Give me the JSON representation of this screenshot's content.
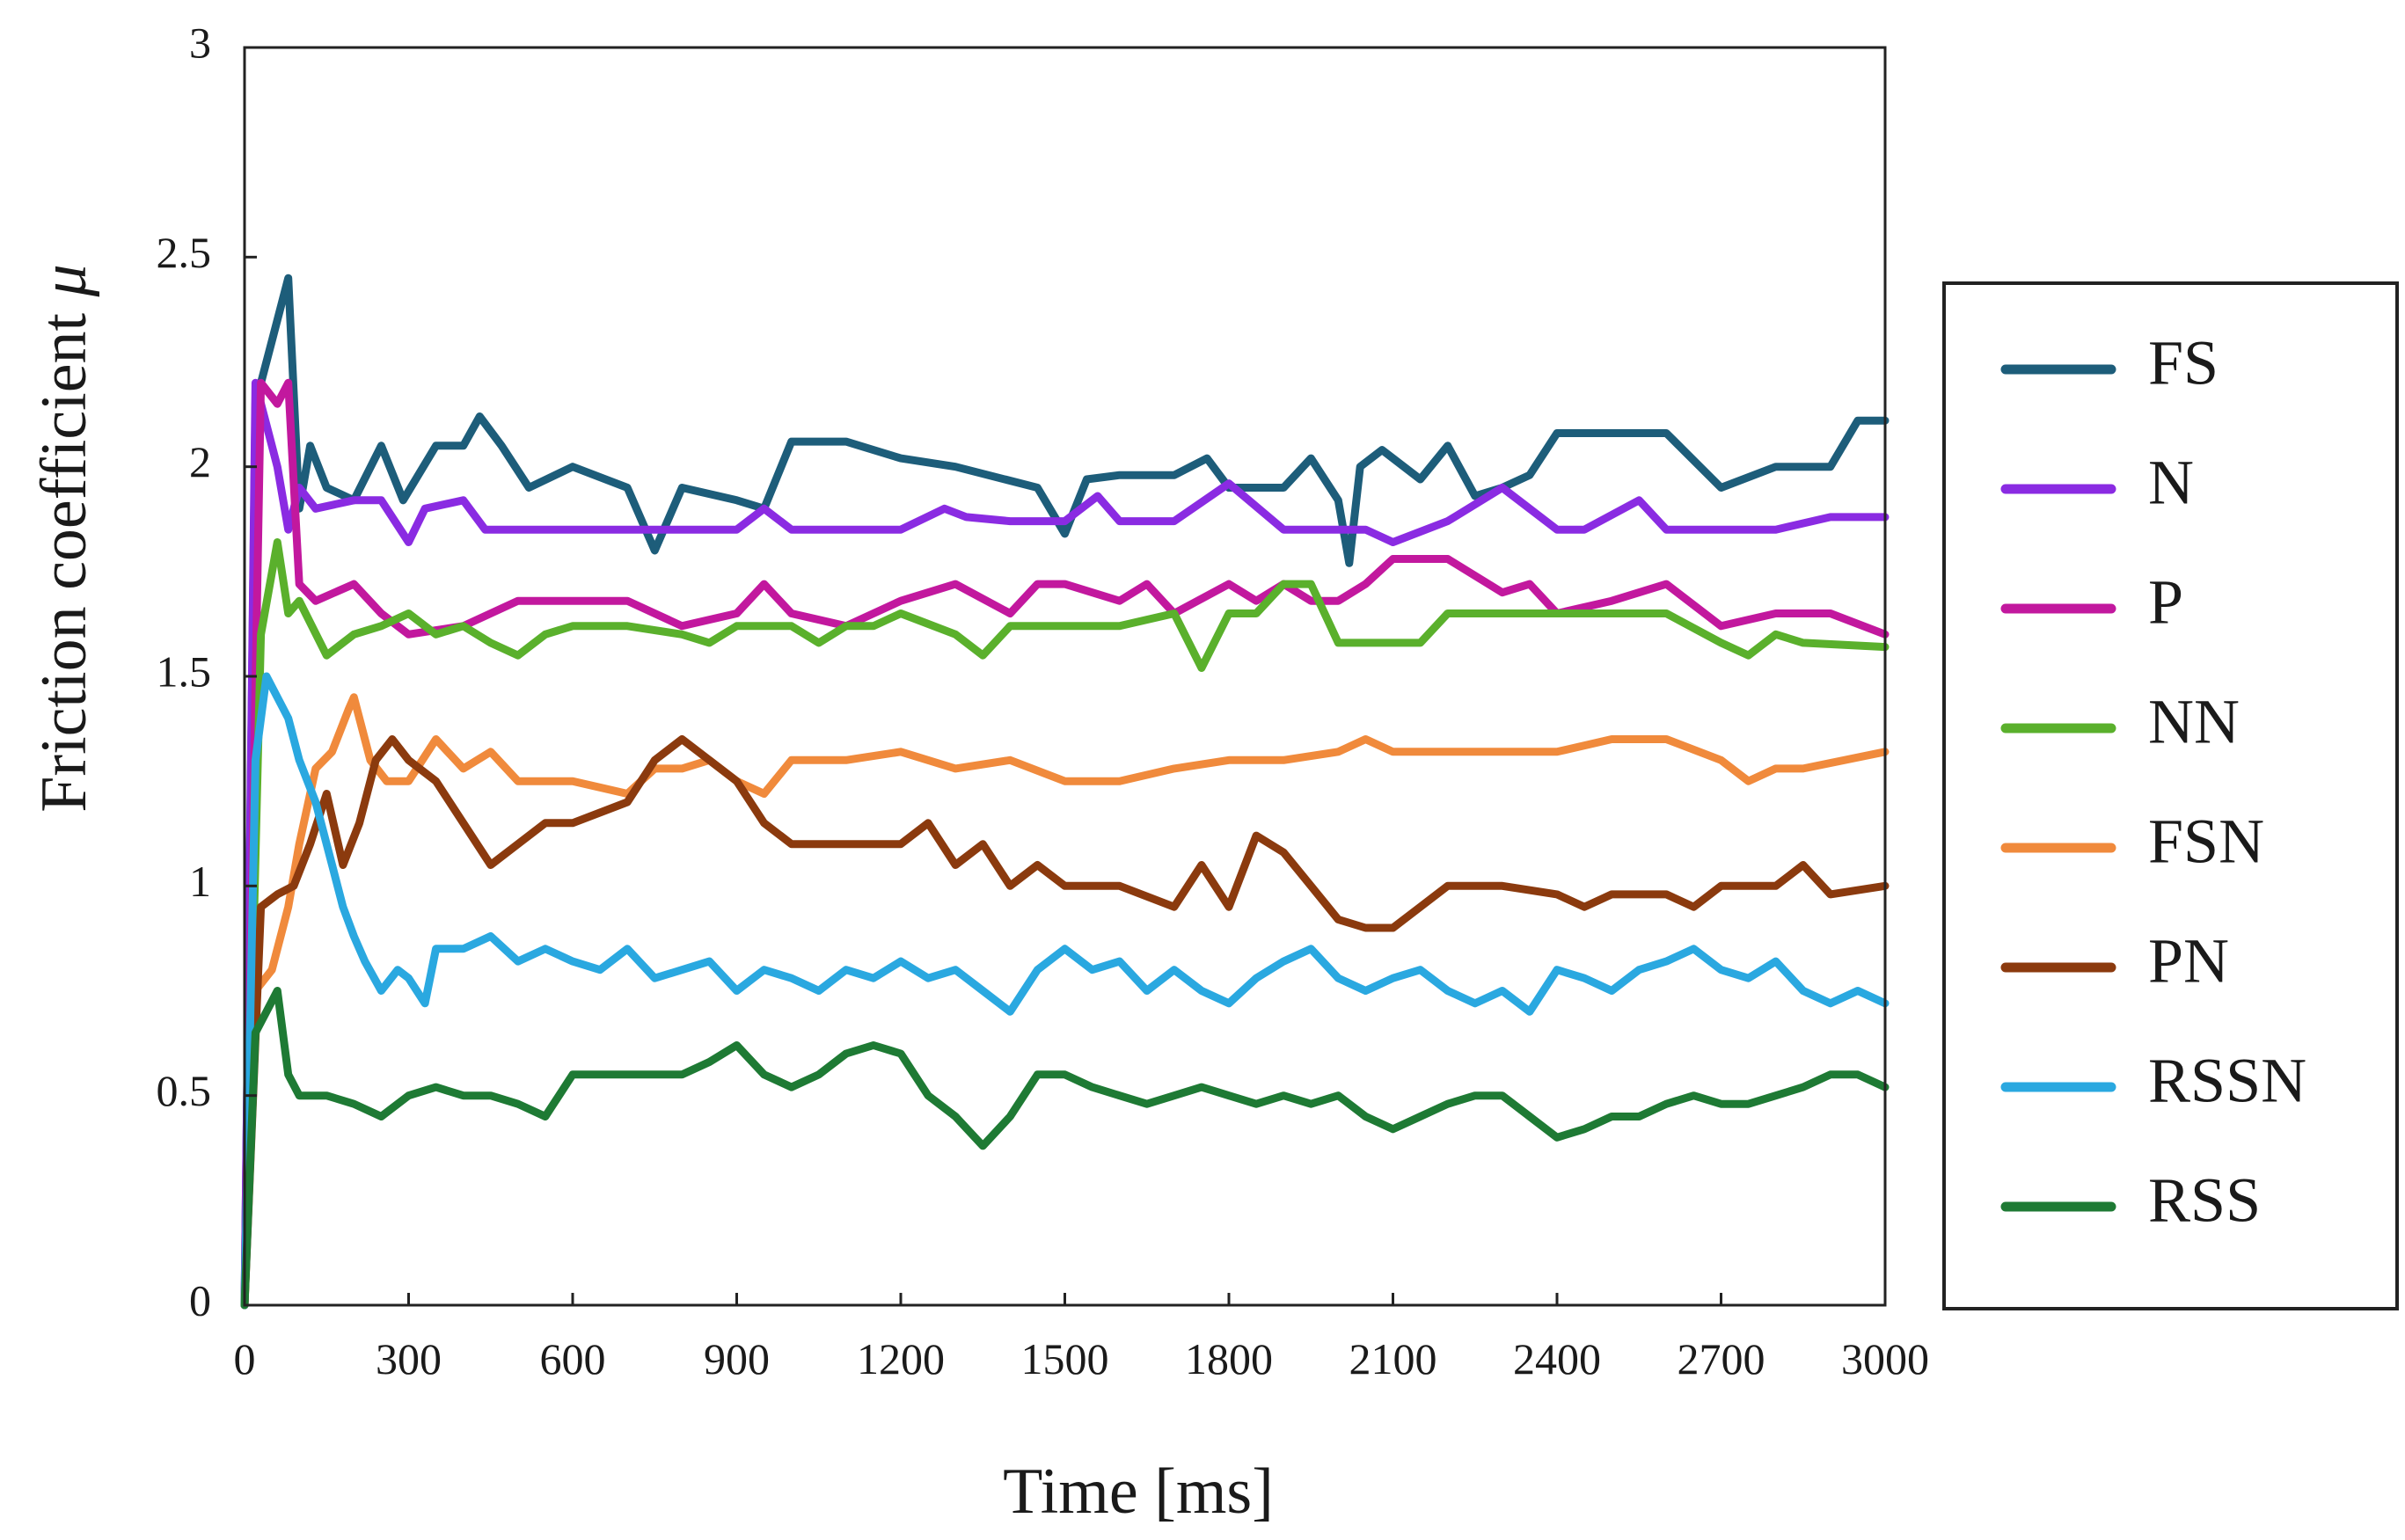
{
  "chart_data": {
    "type": "line",
    "title": "",
    "xlabel": "Time [ms]",
    "ylabel_text": "Friction coefficient ",
    "ylabel_symbol": "μ",
    "xlim": [
      0,
      3000
    ],
    "ylim": [
      0,
      3
    ],
    "xticks": [
      0,
      300,
      600,
      900,
      1200,
      1500,
      1800,
      2100,
      2400,
      2700,
      3000
    ],
    "yticks": [
      0,
      0.5,
      1,
      1.5,
      2,
      2.5,
      3
    ],
    "xtick_labels": [
      "0",
      "300",
      "600",
      "900",
      "1200",
      "1500",
      "1800",
      "2100",
      "2400",
      "2700",
      "3000"
    ],
    "ytick_labels": [
      "0",
      "0.5",
      "1",
      "1.5",
      "2",
      "2.5",
      "3"
    ],
    "grid": false,
    "legend_position": "right",
    "series": [
      {
        "name": "FS",
        "color": "#1d5d7a",
        "x": [
          0,
          20,
          50,
          80,
          100,
          120,
          150,
          200,
          250,
          290,
          350,
          400,
          430,
          470,
          520,
          600,
          700,
          750,
          800,
          900,
          950,
          1000,
          1100,
          1200,
          1300,
          1450,
          1500,
          1540,
          1600,
          1700,
          1760,
          1800,
          1900,
          1950,
          2000,
          2020,
          2040,
          2080,
          2150,
          2200,
          2250,
          2300,
          2350,
          2400,
          2500,
          2600,
          2700,
          2800,
          2900,
          2950,
          3000
        ],
        "y": [
          0,
          2.15,
          2.3,
          2.45,
          1.9,
          2.05,
          1.95,
          1.92,
          2.05,
          1.92,
          2.05,
          2.05,
          2.12,
          2.05,
          1.95,
          2.0,
          1.95,
          1.8,
          1.95,
          1.92,
          1.9,
          2.06,
          2.06,
          2.02,
          2.0,
          1.95,
          1.84,
          1.97,
          1.98,
          1.98,
          2.02,
          1.95,
          1.95,
          2.02,
          1.92,
          1.77,
          2.0,
          2.04,
          1.97,
          2.05,
          1.93,
          1.95,
          1.98,
          2.08,
          2.08,
          2.08,
          1.95,
          2.0,
          2.0,
          2.11,
          2.11
        ]
      },
      {
        "name": "N",
        "color": "#8a2be2",
        "x": [
          0,
          20,
          40,
          60,
          80,
          100,
          130,
          200,
          250,
          300,
          330,
          400,
          440,
          480,
          600,
          700,
          800,
          900,
          950,
          1000,
          1100,
          1200,
          1280,
          1320,
          1400,
          1500,
          1560,
          1600,
          1700,
          1800,
          1900,
          2000,
          2050,
          2100,
          2200,
          2300,
          2400,
          2450,
          2550,
          2600,
          2700,
          2800,
          2900,
          3000
        ],
        "y": [
          0,
          2.2,
          2.1,
          2.0,
          1.85,
          1.95,
          1.9,
          1.92,
          1.92,
          1.82,
          1.9,
          1.92,
          1.85,
          1.85,
          1.85,
          1.85,
          1.85,
          1.85,
          1.9,
          1.85,
          1.85,
          1.85,
          1.9,
          1.88,
          1.87,
          1.87,
          1.93,
          1.87,
          1.87,
          1.96,
          1.85,
          1.85,
          1.85,
          1.82,
          1.87,
          1.95,
          1.85,
          1.85,
          1.92,
          1.85,
          1.85,
          1.85,
          1.88,
          1.88
        ]
      },
      {
        "name": "P",
        "color": "#c2189e",
        "x": [
          0,
          30,
          60,
          80,
          100,
          130,
          200,
          250,
          300,
          400,
          500,
          600,
          700,
          800,
          900,
          950,
          1000,
          1100,
          1200,
          1300,
          1400,
          1450,
          1500,
          1600,
          1650,
          1700,
          1800,
          1850,
          1900,
          1950,
          2000,
          2050,
          2100,
          2200,
          2300,
          2350,
          2400,
          2500,
          2600,
          2700,
          2800,
          2900,
          3000
        ],
        "y": [
          0,
          2.2,
          2.15,
          2.2,
          1.72,
          1.68,
          1.72,
          1.65,
          1.6,
          1.62,
          1.68,
          1.68,
          1.68,
          1.62,
          1.65,
          1.72,
          1.65,
          1.62,
          1.68,
          1.72,
          1.65,
          1.72,
          1.72,
          1.68,
          1.72,
          1.65,
          1.72,
          1.68,
          1.72,
          1.68,
          1.68,
          1.72,
          1.78,
          1.78,
          1.7,
          1.72,
          1.65,
          1.68,
          1.72,
          1.62,
          1.65,
          1.65,
          1.6
        ]
      },
      {
        "name": "NN",
        "color": "#5ab02c",
        "x": [
          0,
          30,
          60,
          80,
          100,
          150,
          200,
          250,
          300,
          350,
          400,
          450,
          500,
          550,
          600,
          700,
          800,
          850,
          900,
          1000,
          1050,
          1100,
          1150,
          1200,
          1300,
          1350,
          1400,
          1500,
          1600,
          1700,
          1750,
          1800,
          1850,
          1900,
          1950,
          2000,
          2100,
          2150,
          2200,
          2300,
          2400,
          2500,
          2600,
          2700,
          2750,
          2800,
          2850,
          3000
        ],
        "y": [
          0,
          1.6,
          1.82,
          1.65,
          1.68,
          1.55,
          1.6,
          1.62,
          1.65,
          1.6,
          1.62,
          1.58,
          1.55,
          1.6,
          1.62,
          1.62,
          1.6,
          1.58,
          1.62,
          1.62,
          1.58,
          1.62,
          1.62,
          1.65,
          1.6,
          1.55,
          1.62,
          1.62,
          1.62,
          1.65,
          1.52,
          1.65,
          1.65,
          1.72,
          1.72,
          1.58,
          1.58,
          1.58,
          1.65,
          1.65,
          1.65,
          1.65,
          1.65,
          1.58,
          1.55,
          1.6,
          1.58,
          1.57
        ]
      },
      {
        "name": "FSN",
        "color": "#f08a3c",
        "x": [
          0,
          20,
          50,
          80,
          100,
          130,
          160,
          190,
          200,
          230,
          260,
          300,
          350,
          400,
          450,
          500,
          600,
          700,
          750,
          800,
          850,
          900,
          950,
          1000,
          1100,
          1200,
          1300,
          1400,
          1500,
          1600,
          1700,
          1800,
          1900,
          2000,
          2050,
          2100,
          2200,
          2300,
          2400,
          2500,
          2600,
          2700,
          2750,
          2800,
          2850,
          3000
        ],
        "y": [
          0,
          0.75,
          0.8,
          0.95,
          1.1,
          1.28,
          1.32,
          1.42,
          1.45,
          1.3,
          1.25,
          1.25,
          1.35,
          1.28,
          1.32,
          1.25,
          1.25,
          1.22,
          1.28,
          1.28,
          1.3,
          1.25,
          1.22,
          1.3,
          1.3,
          1.32,
          1.28,
          1.3,
          1.25,
          1.25,
          1.28,
          1.3,
          1.3,
          1.32,
          1.35,
          1.32,
          1.32,
          1.32,
          1.32,
          1.35,
          1.35,
          1.3,
          1.25,
          1.28,
          1.28,
          1.32
        ]
      },
      {
        "name": "PN",
        "color": "#8b3a0e",
        "x": [
          0,
          30,
          60,
          90,
          120,
          150,
          180,
          210,
          240,
          270,
          300,
          350,
          400,
          450,
          500,
          550,
          600,
          700,
          750,
          800,
          850,
          900,
          950,
          1000,
          1100,
          1200,
          1250,
          1300,
          1350,
          1400,
          1450,
          1500,
          1600,
          1700,
          1750,
          1800,
          1850,
          1900,
          1950,
          2000,
          2050,
          2100,
          2150,
          2200,
          2300,
          2400,
          2450,
          2500,
          2600,
          2650,
          2700,
          2800,
          2850,
          2900,
          3000
        ],
        "y": [
          0,
          0.95,
          0.98,
          1.0,
          1.1,
          1.22,
          1.05,
          1.15,
          1.3,
          1.35,
          1.3,
          1.25,
          1.15,
          1.05,
          1.1,
          1.15,
          1.15,
          1.2,
          1.3,
          1.35,
          1.3,
          1.25,
          1.15,
          1.1,
          1.1,
          1.1,
          1.15,
          1.05,
          1.1,
          1.0,
          1.05,
          1.0,
          1.0,
          0.95,
          1.05,
          0.95,
          1.12,
          1.08,
          1.0,
          0.92,
          0.9,
          0.9,
          0.95,
          1.0,
          1.0,
          0.98,
          0.95,
          0.98,
          0.98,
          0.95,
          1.0,
          1.0,
          1.05,
          0.98,
          1.0
        ]
      },
      {
        "name": "RSSN",
        "color": "#2aa8e0",
        "x": [
          0,
          20,
          40,
          60,
          80,
          100,
          130,
          160,
          180,
          200,
          220,
          250,
          280,
          300,
          330,
          350,
          400,
          450,
          500,
          550,
          600,
          650,
          700,
          750,
          800,
          850,
          900,
          950,
          1000,
          1050,
          1100,
          1150,
          1200,
          1250,
          1300,
          1350,
          1400,
          1450,
          1500,
          1550,
          1600,
          1650,
          1700,
          1750,
          1800,
          1850,
          1900,
          1950,
          2000,
          2050,
          2100,
          2150,
          2200,
          2250,
          2300,
          2350,
          2400,
          2450,
          2500,
          2550,
          2600,
          2650,
          2700,
          2750,
          2800,
          2850,
          2900,
          2950,
          3000
        ],
        "y": [
          0,
          1.3,
          1.5,
          1.45,
          1.4,
          1.3,
          1.2,
          1.05,
          0.95,
          0.88,
          0.82,
          0.75,
          0.8,
          0.78,
          0.72,
          0.85,
          0.85,
          0.88,
          0.82,
          0.85,
          0.82,
          0.8,
          0.85,
          0.78,
          0.8,
          0.82,
          0.75,
          0.8,
          0.78,
          0.75,
          0.8,
          0.78,
          0.82,
          0.78,
          0.8,
          0.75,
          0.7,
          0.8,
          0.85,
          0.8,
          0.82,
          0.75,
          0.8,
          0.75,
          0.72,
          0.78,
          0.82,
          0.85,
          0.78,
          0.75,
          0.78,
          0.8,
          0.75,
          0.72,
          0.75,
          0.7,
          0.8,
          0.78,
          0.75,
          0.8,
          0.82,
          0.85,
          0.8,
          0.78,
          0.82,
          0.75,
          0.72,
          0.75,
          0.72
        ]
      },
      {
        "name": "RSS",
        "color": "#1e7a34",
        "x": [
          0,
          20,
          40,
          60,
          80,
          100,
          150,
          200,
          250,
          300,
          350,
          400,
          450,
          500,
          550,
          600,
          650,
          700,
          750,
          800,
          850,
          900,
          950,
          1000,
          1050,
          1100,
          1150,
          1200,
          1250,
          1300,
          1350,
          1400,
          1450,
          1500,
          1550,
          1600,
          1650,
          1700,
          1750,
          1800,
          1850,
          1900,
          1950,
          2000,
          2050,
          2100,
          2150,
          2200,
          2250,
          2300,
          2350,
          2400,
          2450,
          2500,
          2550,
          2600,
          2650,
          2700,
          2750,
          2800,
          2850,
          2900,
          2950,
          3000
        ],
        "y": [
          0,
          0.65,
          0.7,
          0.75,
          0.55,
          0.5,
          0.5,
          0.48,
          0.45,
          0.5,
          0.52,
          0.5,
          0.5,
          0.48,
          0.45,
          0.55,
          0.55,
          0.55,
          0.55,
          0.55,
          0.58,
          0.62,
          0.55,
          0.52,
          0.55,
          0.6,
          0.62,
          0.6,
          0.5,
          0.45,
          0.38,
          0.45,
          0.55,
          0.55,
          0.52,
          0.5,
          0.48,
          0.5,
          0.52,
          0.5,
          0.48,
          0.5,
          0.48,
          0.5,
          0.45,
          0.42,
          0.45,
          0.48,
          0.5,
          0.5,
          0.45,
          0.4,
          0.42,
          0.45,
          0.45,
          0.48,
          0.5,
          0.48,
          0.48,
          0.5,
          0.52,
          0.55,
          0.55,
          0.52
        ]
      }
    ]
  }
}
